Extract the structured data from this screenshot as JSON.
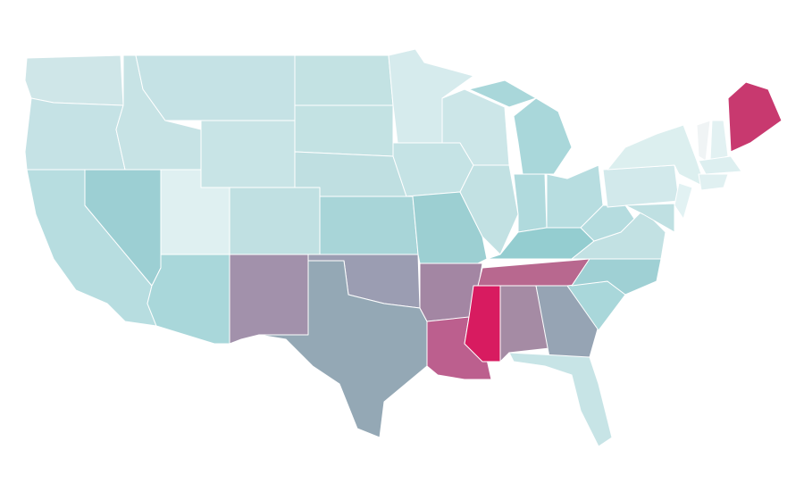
{
  "map": {
    "fills": [
      "#cfe6e8",
      "#c5e2e5",
      "#b7dde0",
      "#9ccfd3",
      "#c7e3e5",
      "#c5e2e5",
      "#c8e4e6",
      "#dff0f1",
      "#c0e0e2",
      "#a9d7da",
      "#a291ab",
      "#c3e2e3",
      "#c3e2e3",
      "#bfdfe1",
      "#a8d5d8",
      "#9b9db2",
      "#94a8b5",
      "#d6ebed",
      "#c5e3e5",
      "#9ccfd2",
      "#a386a3",
      "#bc5f8e",
      "#cce6e8",
      "#c2e1e3",
      "#a9d7da",
      "#a9d7da",
      "#b0dadd",
      "#b7dde0",
      "#94cdd0",
      "#b8688f",
      "#d81b60",
      "#a58ba4",
      "#96a4b4",
      "#c7e4e6",
      "#a9d7da",
      "#9fd0d4",
      "#c2e1e3",
      "#b5dcdf",
      "#d2e9eb",
      "#dcefef",
      "#e2f2f3",
      "#bfe0e2",
      "#f0f4f5",
      "#e2f1f2",
      "#ddeff0",
      "#e0f0f1",
      "#c8396f"
    ],
    "stroke": "#ffffff"
  }
}
